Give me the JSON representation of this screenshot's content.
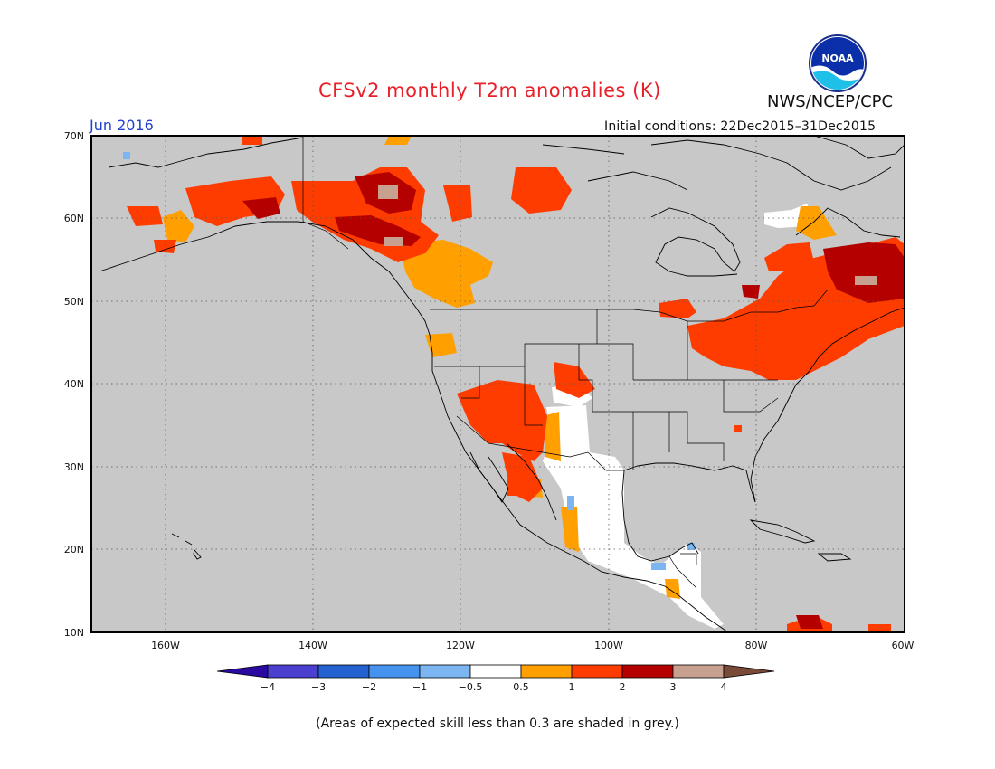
{
  "title": "CFSv2 monthly T2m anomalies (K)",
  "month": "Jun 2016",
  "initial_conditions": "Initial conditions: 22Dec2015–31Dec2015",
  "agency": "NWS/NCEP/CPC",
  "logo": {
    "text": "NOAA"
  },
  "footnote": "(Areas of expected skill less than 0.3 are shaded in grey.)",
  "map": {
    "lat_labels": [
      "70N",
      "60N",
      "50N",
      "40N",
      "30N",
      "20N",
      "10N"
    ],
    "lon_labels": [
      "160W",
      "140W",
      "120W",
      "100W",
      "80W",
      "60W"
    ],
    "lat_range": [
      10,
      70
    ],
    "lon_range": [
      -170,
      -60
    ],
    "grid": true,
    "no_skill_color": "#c8c8c8"
  },
  "colorbar": {
    "labels": [
      "−4",
      "−3",
      "−2",
      "−1",
      "−0.5",
      "0.5",
      "1",
      "2",
      "3",
      "4"
    ],
    "colors": [
      "#2a0aa0",
      "#4a3fcf",
      "#2462d2",
      "#4693ef",
      "#7bb6f3",
      "#ffffff",
      "#ffa000",
      "#ff3c00",
      "#b50000",
      "#c8a090",
      "#7a4a38"
    ]
  },
  "anomaly_regions": [
    {
      "name": "alaska-west",
      "level": "1 to 2"
    },
    {
      "name": "alaska-southeast",
      "level": "2 to 3"
    },
    {
      "name": "yukon-bc",
      "level": "2 to 3"
    },
    {
      "name": "british-columbia",
      "level": "0.5 to 1"
    },
    {
      "name": "nunavut",
      "level": "1 to 2"
    },
    {
      "name": "us-southwest",
      "level": "1 to 2"
    },
    {
      "name": "great-lakes-ontario",
      "level": "1 to 2"
    },
    {
      "name": "quebec-east",
      "level": "2 to 3"
    },
    {
      "name": "mexico-central",
      "level": "-0.5 to 0.5"
    }
  ]
}
